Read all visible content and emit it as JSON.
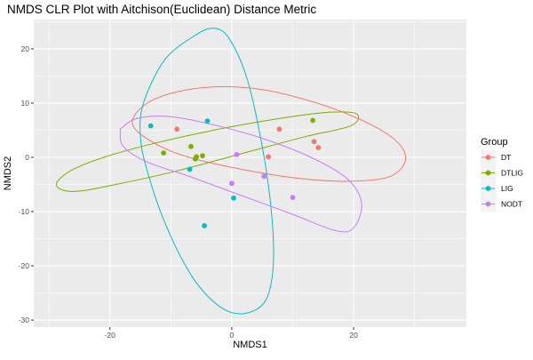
{
  "chart_data": {
    "type": "scatter",
    "title": "NMDS CLR Plot with Aitchison(Euclidean) Distance Metric",
    "xlabel": "NMDS1",
    "ylabel": "NMDS2",
    "xlim": [
      -32.5,
      38.5
    ],
    "ylim": [
      -31.3,
      25.4
    ],
    "x_ticks": [
      -20,
      0,
      20
    ],
    "y_ticks": [
      -30,
      -20,
      -10,
      0,
      10,
      20
    ],
    "grid": true,
    "legend": {
      "title": "Group",
      "position": "right"
    },
    "series": [
      {
        "name": "DT",
        "color": "#F8766D",
        "points": [
          [
            -9.0,
            5.2
          ],
          [
            7.8,
            5.2
          ],
          [
            6.0,
            0.1
          ],
          [
            13.5,
            2.9
          ],
          [
            14.2,
            1.8
          ]
        ],
        "ellipse": {
          "points": [
            [
              -16.3,
              6.1
            ],
            [
              -14.5,
              9.5
            ],
            [
              -10.0,
              11.8
            ],
            [
              -3.0,
              13.0
            ],
            [
              5.0,
              12.5
            ],
            [
              14.0,
              10.0
            ],
            [
              22.0,
              6.5
            ],
            [
              27.0,
              3.0
            ],
            [
              28.5,
              -0.5
            ],
            [
              26.0,
              -3.5
            ],
            [
              20.0,
              -4.4
            ],
            [
              12.0,
              -4.0
            ],
            [
              3.0,
              -2.5
            ],
            [
              -7.0,
              0.0
            ],
            [
              -13.0,
              2.8
            ]
          ]
        }
      },
      {
        "name": "DTLIG",
        "color": "#7CAE00",
        "points": [
          [
            -11.2,
            0.8
          ],
          [
            -6.7,
            2.0
          ],
          [
            -6.0,
            -0.3
          ],
          [
            -5.8,
            0.1
          ],
          [
            -4.8,
            0.3
          ],
          [
            13.3,
            6.8
          ]
        ],
        "ellipse": {
          "points": [
            [
              -28.8,
              -5.1
            ],
            [
              -26.5,
              -2.5
            ],
            [
              -21.0,
              0.0
            ],
            [
              -13.0,
              2.5
            ],
            [
              -3.0,
              5.0
            ],
            [
              8.0,
              7.2
            ],
            [
              16.0,
              8.3
            ],
            [
              20.5,
              8.0
            ],
            [
              19.5,
              5.8
            ],
            [
              12.0,
              3.8
            ],
            [
              2.0,
              0.8
            ],
            [
              -9.0,
              -2.5
            ],
            [
              -19.0,
              -5.0
            ],
            [
              -26.0,
              -6.3
            ]
          ]
        }
      },
      {
        "name": "LIG",
        "color": "#00BFC4",
        "points": [
          [
            -13.3,
            5.8
          ],
          [
            -4.0,
            6.7
          ],
          [
            -6.9,
            -2.2
          ],
          [
            0.3,
            -7.5
          ],
          [
            -4.5,
            -12.6
          ]
        ],
        "ellipse": {
          "points": [
            [
              -14.5,
              10.0
            ],
            [
              -11.0,
              18.0
            ],
            [
              -6.0,
              22.5
            ],
            [
              -3.0,
              23.8
            ],
            [
              -0.5,
              22.0
            ],
            [
              2.5,
              14.5
            ],
            [
              5.0,
              2.0
            ],
            [
              6.5,
              -10.0
            ],
            [
              6.8,
              -20.0
            ],
            [
              5.5,
              -26.5
            ],
            [
              2.0,
              -28.8
            ],
            [
              -2.0,
              -27.5
            ],
            [
              -6.5,
              -22.0
            ],
            [
              -11.0,
              -12.0
            ],
            [
              -14.0,
              -2.0
            ],
            [
              -15.0,
              4.0
            ]
          ]
        }
      },
      {
        "name": "NODT",
        "color": "#C77CFF",
        "points": [
          [
            0.8,
            0.5
          ],
          [
            0.0,
            -4.8
          ],
          [
            5.3,
            -3.5
          ],
          [
            10.0,
            -7.4
          ]
        ],
        "ellipse": {
          "points": [
            [
              -18.3,
              4.9
            ],
            [
              -17.8,
              2.0
            ],
            [
              -14.0,
              -0.8
            ],
            [
              -7.0,
              -3.5
            ],
            [
              1.0,
              -6.8
            ],
            [
              10.0,
              -10.5
            ],
            [
              17.0,
              -13.5
            ],
            [
              20.0,
              -13.0
            ],
            [
              21.3,
              -8.5
            ],
            [
              19.0,
              -4.0
            ],
            [
              13.0,
              0.0
            ],
            [
              5.0,
              3.5
            ],
            [
              -3.0,
              6.0
            ],
            [
              -10.0,
              7.5
            ],
            [
              -15.5,
              7.2
            ],
            [
              -18.0,
              5.5
            ]
          ]
        }
      }
    ]
  }
}
